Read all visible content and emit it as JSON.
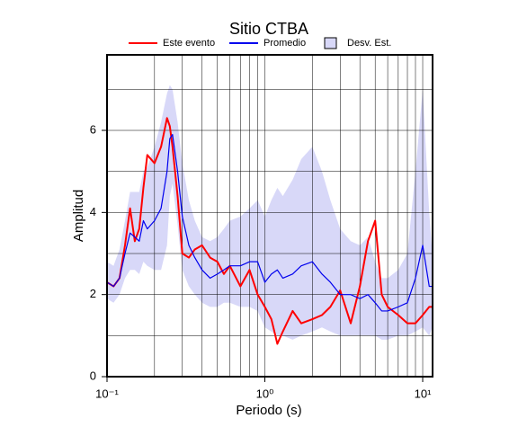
{
  "chart_data": {
    "type": "line",
    "title": "Sitio CTBA",
    "x_label": "Periodo (s)",
    "y_label": "Amplitud",
    "log_x": true,
    "grid": true,
    "xlim": [
      0.1,
      11.55
    ],
    "ylim": [
      0,
      7.84
    ],
    "xticks": [
      {
        "value": 0.1,
        "label": "10⁻¹"
      },
      {
        "value": 1,
        "label": "10⁰"
      },
      {
        "value": 10,
        "label": "10¹"
      }
    ],
    "x_minor_ticks": [
      0.2,
      0.3,
      0.4,
      0.5,
      0.6,
      0.7,
      0.8,
      0.9,
      2,
      3,
      4,
      5,
      6,
      7,
      8,
      9
    ],
    "yticks": [
      0,
      2,
      4,
      6
    ],
    "y_minor_ticks": [
      1,
      3,
      5,
      7
    ],
    "x": [
      0.1,
      0.11,
      0.12,
      0.13,
      0.14,
      0.15,
      0.16,
      0.17,
      0.18,
      0.2,
      0.22,
      0.24,
      0.25,
      0.26,
      0.28,
      0.3,
      0.33,
      0.36,
      0.4,
      0.45,
      0.5,
      0.55,
      0.6,
      0.7,
      0.8,
      0.9,
      1.0,
      1.1,
      1.2,
      1.3,
      1.5,
      1.7,
      2,
      2.3,
      2.6,
      3,
      3.5,
      4,
      4.5,
      5,
      5.5,
      6,
      7,
      8,
      9,
      10,
      11,
      11.5
    ],
    "series": [
      {
        "name": "Este evento",
        "color": "#ff0000",
        "width": 2,
        "values": [
          2.3,
          2.2,
          2.4,
          3.2,
          4.1,
          3.3,
          3.6,
          4.6,
          5.4,
          5.2,
          5.6,
          6.3,
          6.1,
          5.6,
          4.4,
          3.0,
          2.9,
          3.1,
          3.2,
          2.9,
          2.8,
          2.5,
          2.7,
          2.2,
          2.6,
          2.0,
          1.7,
          1.4,
          0.8,
          1.1,
          1.6,
          1.3,
          1.4,
          1.5,
          1.7,
          2.1,
          1.3,
          2.2,
          3.3,
          3.8,
          2.0,
          1.7,
          1.5,
          1.3,
          1.3,
          1.5,
          1.7,
          1.7
        ]
      },
      {
        "name": "Promedio",
        "color": "#0000ee",
        "width": 1.2,
        "values": [
          2.3,
          2.2,
          2.4,
          3.0,
          3.5,
          3.4,
          3.3,
          3.8,
          3.6,
          3.8,
          4.1,
          5.0,
          5.8,
          5.9,
          5.0,
          3.9,
          3.2,
          2.9,
          2.6,
          2.4,
          2.5,
          2.6,
          2.7,
          2.7,
          2.8,
          2.8,
          2.3,
          2.5,
          2.6,
          2.4,
          2.5,
          2.7,
          2.8,
          2.5,
          2.3,
          2.0,
          2.0,
          1.9,
          2.0,
          1.8,
          1.6,
          1.6,
          1.7,
          1.8,
          2.4,
          3.2,
          2.2,
          2.2
        ]
      }
    ],
    "band": {
      "name": "Desv. Est.",
      "color": "#d8d8f8",
      "upper": [
        2.8,
        2.7,
        3.1,
        3.8,
        4.5,
        4.5,
        4.5,
        5.0,
        5.1,
        5.6,
        6.2,
        6.9,
        7.1,
        7.0,
        6.2,
        5.2,
        4.3,
        3.8,
        3.4,
        3.3,
        3.4,
        3.6,
        3.8,
        3.9,
        4.1,
        4.3,
        3.9,
        4.3,
        4.6,
        4.4,
        4.8,
        5.3,
        5.6,
        5.0,
        4.3,
        3.6,
        3.3,
        3.2,
        3.4,
        2.8,
        2.4,
        2.4,
        2.6,
        3.0,
        5.0,
        7.0,
        4.0,
        3.0
      ],
      "lower": [
        1.9,
        1.8,
        2.0,
        2.4,
        2.6,
        2.6,
        2.5,
        2.8,
        2.7,
        2.6,
        2.6,
        3.2,
        4.4,
        4.7,
        3.7,
        2.6,
        2.2,
        2.0,
        1.8,
        1.7,
        1.7,
        1.8,
        1.8,
        1.7,
        1.7,
        1.6,
        1.2,
        1.1,
        1.0,
        1.0,
        0.9,
        1.0,
        1.1,
        1.2,
        1.1,
        1.0,
        1.0,
        1.0,
        1.0,
        1.0,
        0.9,
        0.9,
        1.0,
        1.0,
        1.1,
        1.2,
        1.0,
        1.2
      ]
    }
  }
}
